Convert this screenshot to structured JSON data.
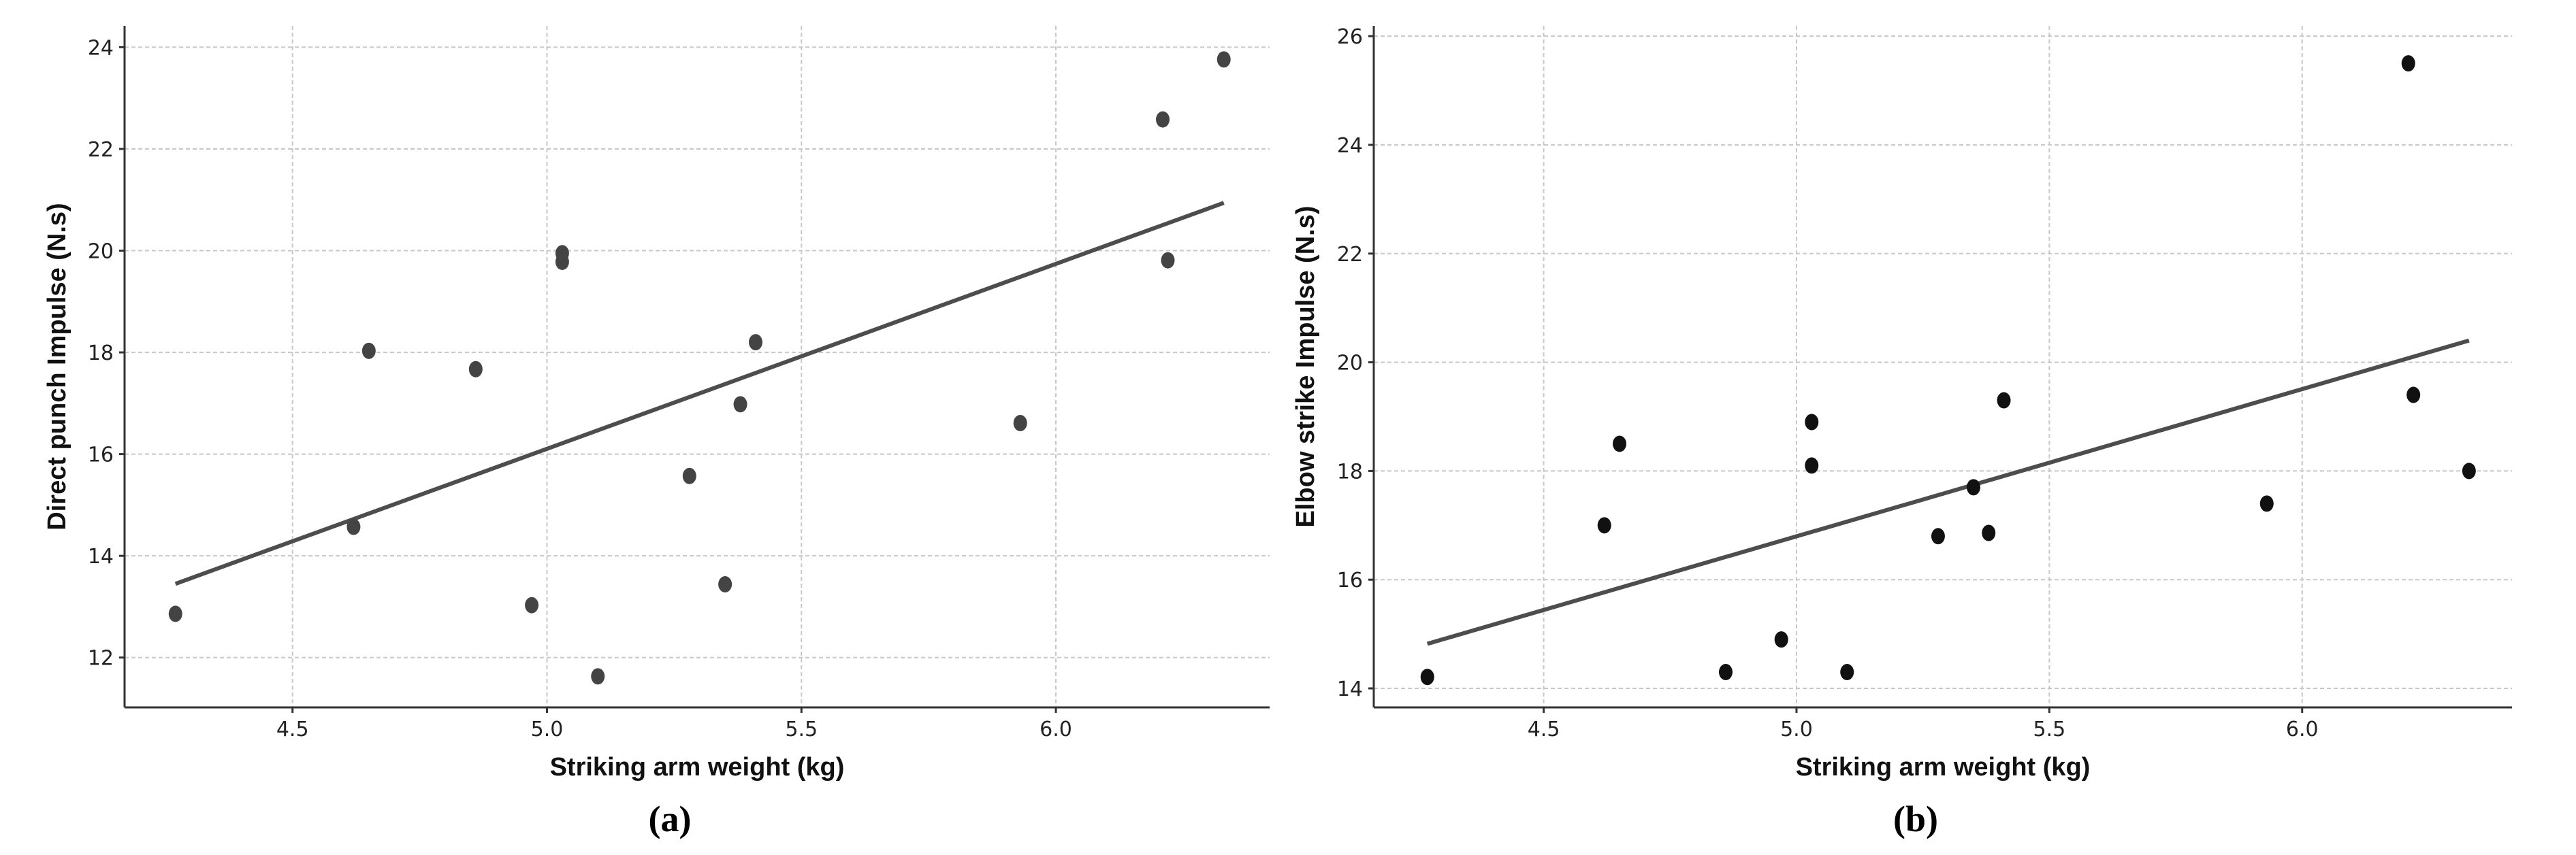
{
  "chart_data": [
    {
      "type": "scatter",
      "panel_label": "(a)",
      "xlabel": "Striking arm weight (kg)",
      "ylabel": "Direct punch Impulse (N.s)",
      "xlim": [
        4.17,
        6.42
      ],
      "ylim": [
        11.02,
        24.42
      ],
      "xticks": [
        4.5,
        5.0,
        5.5,
        6.0
      ],
      "xtick_labels": [
        "4.5",
        "5.0",
        "5.5",
        "6.0"
      ],
      "yticks": [
        12,
        14,
        16,
        18,
        20,
        22,
        24
      ],
      "ytick_labels": [
        "12",
        "14",
        "16",
        "18",
        "20",
        "22",
        "24"
      ],
      "grid": true,
      "point_color": "#444444",
      "line_color": "#4d4d4d",
      "points": [
        [
          4.27,
          12.86
        ],
        [
          4.62,
          14.57
        ],
        [
          4.65,
          18.03
        ],
        [
          4.86,
          17.67
        ],
        [
          4.97,
          13.03
        ],
        [
          5.03,
          19.95
        ],
        [
          5.03,
          19.78
        ],
        [
          5.1,
          11.63
        ],
        [
          5.28,
          15.57
        ],
        [
          5.35,
          13.44
        ],
        [
          5.38,
          16.98
        ],
        [
          5.41,
          18.2
        ],
        [
          5.93,
          16.61
        ],
        [
          6.21,
          22.58
        ],
        [
          6.22,
          19.81
        ],
        [
          6.33,
          23.76
        ]
      ],
      "trendline": [
        [
          4.27,
          13.45
        ],
        [
          6.33,
          20.94
        ]
      ]
    },
    {
      "type": "scatter",
      "panel_label": "(b)",
      "xlabel": "Striking arm weight (kg)",
      "ylabel": "Elbow strike Impulse (N.s)",
      "xlim": [
        4.164,
        6.415
      ],
      "ylim": [
        13.65,
        26.19
      ],
      "xticks": [
        4.5,
        5.0,
        5.5,
        6.0
      ],
      "xtick_labels": [
        "4.5",
        "5.0",
        "5.5",
        "6.0"
      ],
      "yticks": [
        14,
        16,
        18,
        20,
        22,
        24,
        26
      ],
      "ytick_labels": [
        "14",
        "16",
        "18",
        "20",
        "22",
        "24",
        "26"
      ],
      "grid": true,
      "point_color": "#111111",
      "line_color": "#4d4d4d",
      "points": [
        [
          4.27,
          14.21
        ],
        [
          4.62,
          17.0
        ],
        [
          4.65,
          18.5
        ],
        [
          4.86,
          14.3
        ],
        [
          4.97,
          14.9
        ],
        [
          5.03,
          18.9
        ],
        [
          5.03,
          18.1
        ],
        [
          5.1,
          14.3
        ],
        [
          5.28,
          16.8
        ],
        [
          5.35,
          17.7
        ],
        [
          5.38,
          16.86
        ],
        [
          5.41,
          19.3
        ],
        [
          5.93,
          17.4
        ],
        [
          6.21,
          25.5
        ],
        [
          6.22,
          19.4
        ],
        [
          6.33,
          18.0
        ]
      ],
      "trendline": [
        [
          4.27,
          14.82
        ],
        [
          6.33,
          20.4
        ]
      ]
    }
  ]
}
